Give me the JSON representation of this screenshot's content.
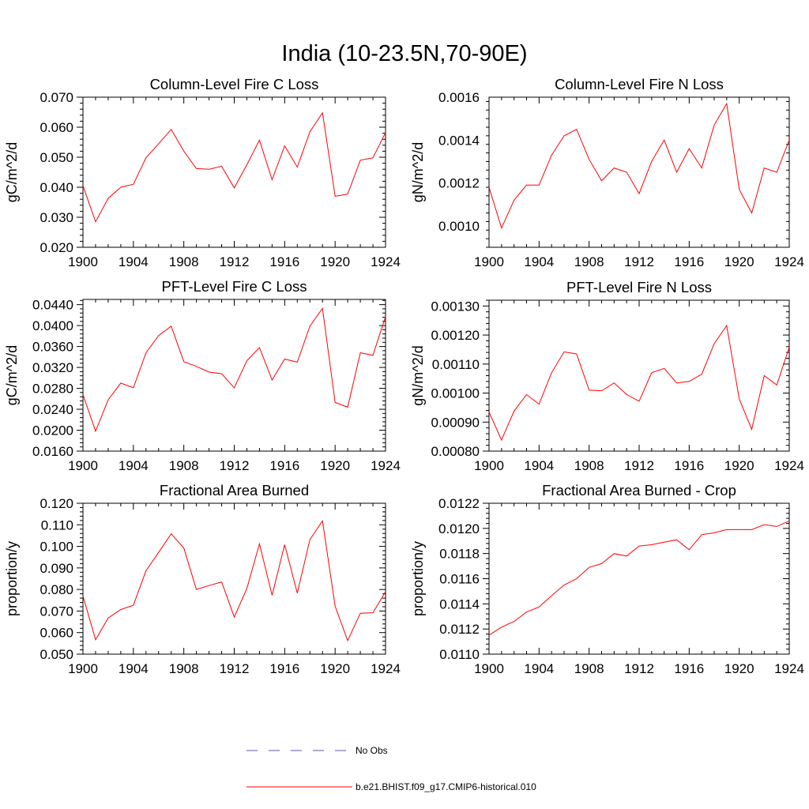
{
  "figure": {
    "title": "India (10-23.5N,70-90E)"
  },
  "chart_data": [
    {
      "type": "line",
      "title": "Column-Level Fire C Loss",
      "xlabel": "",
      "ylabel": "gC/m^2/d",
      "xlim": [
        1900,
        1924
      ],
      "ylim": [
        0.02,
        0.07
      ],
      "xticks": [
        1900,
        1904,
        1908,
        1912,
        1916,
        1920,
        1924
      ],
      "xtick_labels": [
        "1900",
        "1904",
        "1908",
        "1912",
        "1916",
        "1920",
        "1924"
      ],
      "yticks": [
        0.02,
        0.03,
        0.04,
        0.05,
        0.06,
        0.07
      ],
      "ytick_labels": [
        "0.020",
        "0.030",
        "0.040",
        "0.050",
        "0.060",
        "0.070"
      ],
      "x": [
        1900,
        1901,
        1902,
        1903,
        1904,
        1905,
        1906,
        1907,
        1908,
        1909,
        1910,
        1911,
        1912,
        1913,
        1914,
        1915,
        1916,
        1917,
        1918,
        1919,
        1920,
        1921,
        1922,
        1923,
        1924
      ],
      "series": [
        {
          "values": [
            0.0405,
            0.0285,
            0.0363,
            0.04,
            0.041,
            0.0498,
            0.0545,
            0.0593,
            0.052,
            0.0462,
            0.046,
            0.047,
            0.0398,
            0.0475,
            0.0557,
            0.0425,
            0.0538,
            0.0467,
            0.0585,
            0.0648,
            0.037,
            0.0377,
            0.049,
            0.0498,
            0.0582
          ],
          "color": "#ff0000"
        }
      ]
    },
    {
      "type": "line",
      "title": "Column-Level Fire N Loss",
      "xlabel": "",
      "ylabel": "gN/m^2/d",
      "xlim": [
        1900,
        1924
      ],
      "ylim": [
        0.0009,
        0.0016
      ],
      "xticks": [
        1900,
        1904,
        1908,
        1912,
        1916,
        1920,
        1924
      ],
      "xtick_labels": [
        "1900",
        "1904",
        "1908",
        "1912",
        "1916",
        "1920",
        "1924"
      ],
      "yticks": [
        0.001,
        0.0012,
        0.0014,
        0.0016
      ],
      "ytick_labels": [
        "0.0010",
        "0.0012",
        "0.0014",
        "0.0016"
      ],
      "x": [
        1900,
        1901,
        1902,
        1903,
        1904,
        1905,
        1906,
        1907,
        1908,
        1909,
        1910,
        1911,
        1912,
        1913,
        1914,
        1915,
        1916,
        1917,
        1918,
        1919,
        1920,
        1921,
        1922,
        1923,
        1924
      ],
      "series": [
        {
          "values": [
            0.00118,
            0.00099,
            0.00112,
            0.00119,
            0.00119,
            0.00133,
            0.00142,
            0.00145,
            0.00131,
            0.00121,
            0.00127,
            0.00125,
            0.00115,
            0.0013,
            0.0014,
            0.00125,
            0.00136,
            0.00127,
            0.00147,
            0.00157,
            0.00117,
            0.00106,
            0.00127,
            0.00125,
            0.0014
          ],
          "color": "#ff0000"
        }
      ]
    },
    {
      "type": "line",
      "title": "PFT-Level Fire C Loss",
      "xlabel": "",
      "ylabel": "gC/m^2/d",
      "xlim": [
        1900,
        1924
      ],
      "ylim": [
        0.016,
        0.045
      ],
      "xticks": [
        1900,
        1904,
        1908,
        1912,
        1916,
        1920,
        1924
      ],
      "xtick_labels": [
        "1900",
        "1904",
        "1908",
        "1912",
        "1916",
        "1920",
        "1924"
      ],
      "yticks": [
        0.016,
        0.02,
        0.024,
        0.028,
        0.032,
        0.036,
        0.04,
        0.044
      ],
      "ytick_labels": [
        "0.0160",
        "0.0200",
        "0.0240",
        "0.0280",
        "0.0320",
        "0.0360",
        "0.0400",
        "0.0440"
      ],
      "x": [
        1900,
        1901,
        1902,
        1903,
        1904,
        1905,
        1906,
        1907,
        1908,
        1909,
        1910,
        1911,
        1912,
        1913,
        1914,
        1915,
        1916,
        1917,
        1918,
        1919,
        1920,
        1921,
        1922,
        1923,
        1924
      ],
      "series": [
        {
          "values": [
            0.0268,
            0.0198,
            0.0258,
            0.029,
            0.0281,
            0.0348,
            0.0381,
            0.0399,
            0.0331,
            0.0322,
            0.0311,
            0.0308,
            0.0281,
            0.0333,
            0.0358,
            0.0296,
            0.0336,
            0.033,
            0.0399,
            0.0433,
            0.0253,
            0.0244,
            0.0348,
            0.0343,
            0.0417
          ],
          "color": "#ff0000"
        }
      ]
    },
    {
      "type": "line",
      "title": "PFT-Level Fire N Loss",
      "xlabel": "",
      "ylabel": "gN/m^2/d",
      "xlim": [
        1900,
        1924
      ],
      "ylim": [
        0.0008,
        0.00132
      ],
      "xticks": [
        1900,
        1904,
        1908,
        1912,
        1916,
        1920,
        1924
      ],
      "xtick_labels": [
        "1900",
        "1904",
        "1908",
        "1912",
        "1916",
        "1920",
        "1924"
      ],
      "yticks": [
        0.0008,
        0.0009,
        0.001,
        0.0011,
        0.0012,
        0.0013
      ],
      "ytick_labels": [
        "0.00080",
        "0.00090",
        "0.00100",
        "0.00110",
        "0.00120",
        "0.00130"
      ],
      "x": [
        1900,
        1901,
        1902,
        1903,
        1904,
        1905,
        1906,
        1907,
        1908,
        1909,
        1910,
        1911,
        1912,
        1913,
        1914,
        1915,
        1916,
        1917,
        1918,
        1919,
        1920,
        1921,
        1922,
        1923,
        1924
      ],
      "series": [
        {
          "values": [
            0.000935,
            0.000838,
            0.000938,
            0.000995,
            0.000962,
            0.00107,
            0.001142,
            0.001135,
            0.00101,
            0.001008,
            0.001035,
            0.000995,
            0.000972,
            0.00107,
            0.001085,
            0.001035,
            0.00104,
            0.001065,
            0.00117,
            0.001233,
            0.00098,
            0.000875,
            0.00106,
            0.001028,
            0.001158
          ],
          "color": "#ff0000"
        }
      ]
    },
    {
      "type": "line",
      "title": "Fractional Area Burned",
      "xlabel": "",
      "ylabel": "proportion/y",
      "xlim": [
        1900,
        1924
      ],
      "ylim": [
        0.05,
        0.12
      ],
      "xticks": [
        1900,
        1904,
        1908,
        1912,
        1916,
        1920,
        1924
      ],
      "xtick_labels": [
        "1900",
        "1904",
        "1908",
        "1912",
        "1916",
        "1920",
        "1924"
      ],
      "yticks": [
        0.05,
        0.06,
        0.07,
        0.08,
        0.09,
        0.1,
        0.11,
        0.12
      ],
      "ytick_labels": [
        "0.050",
        "0.060",
        "0.070",
        "0.080",
        "0.090",
        "0.100",
        "0.110",
        "0.120"
      ],
      "x": [
        1900,
        1901,
        1902,
        1903,
        1904,
        1905,
        1906,
        1907,
        1908,
        1909,
        1910,
        1911,
        1912,
        1913,
        1914,
        1915,
        1916,
        1917,
        1918,
        1919,
        1920,
        1921,
        1922,
        1923,
        1924
      ],
      "series": [
        {
          "values": [
            0.077,
            0.0567,
            0.0668,
            0.0707,
            0.0727,
            0.0887,
            0.0972,
            0.1058,
            0.0992,
            0.08,
            0.0818,
            0.0835,
            0.0672,
            0.0805,
            0.1012,
            0.0773,
            0.1008,
            0.0783,
            0.1032,
            0.1118,
            0.0722,
            0.0563,
            0.069,
            0.0692,
            0.079
          ],
          "color": "#ff0000"
        }
      ]
    },
    {
      "type": "line",
      "title": "Fractional Area Burned - Crop",
      "xlabel": "",
      "ylabel": "proportion/y",
      "xlim": [
        1900,
        1924
      ],
      "ylim": [
        0.011,
        0.0122
      ],
      "xticks": [
        1900,
        1904,
        1908,
        1912,
        1916,
        1920,
        1924
      ],
      "xtick_labels": [
        "1900",
        "1904",
        "1908",
        "1912",
        "1916",
        "1920",
        "1924"
      ],
      "yticks": [
        0.011,
        0.0112,
        0.0114,
        0.0116,
        0.0118,
        0.012,
        0.0122
      ],
      "ytick_labels": [
        "0.0110",
        "0.0112",
        "0.0114",
        "0.0116",
        "0.0118",
        "0.0120",
        "0.0122"
      ],
      "x": [
        1900,
        1901,
        1902,
        1903,
        1904,
        1905,
        1906,
        1907,
        1908,
        1909,
        1910,
        1911,
        1912,
        1913,
        1914,
        1915,
        1916,
        1917,
        1918,
        1919,
        1920,
        1921,
        1922,
        1923,
        1924
      ],
      "series": [
        {
          "values": [
            0.01115,
            0.011215,
            0.01126,
            0.011335,
            0.011375,
            0.011465,
            0.01155,
            0.0116,
            0.01169,
            0.01172,
            0.0118,
            0.01178,
            0.01186,
            0.01187,
            0.01189,
            0.01191,
            0.01183,
            0.01195,
            0.011965,
            0.01199,
            0.01199,
            0.01199,
            0.01203,
            0.012015,
            0.01206
          ],
          "color": "#ff0000"
        }
      ]
    }
  ],
  "legend": {
    "items": [
      {
        "label": "No Obs",
        "color": "#5a5aa8",
        "dash": true
      },
      {
        "label": "b.e21.BHIST.f09_g17.CMIP6-historical.010",
        "color": "#ff0000",
        "dash": false
      }
    ]
  }
}
